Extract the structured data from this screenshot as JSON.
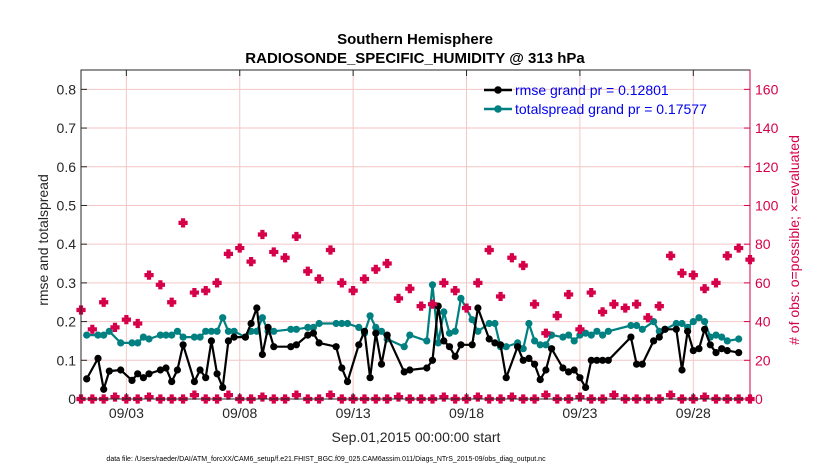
{
  "chart_data": {
    "type": "line",
    "title": "Southern Hemisphere",
    "subtitle": "RADIOSONDE_SPECIFIC_HUMIDITY @ 313 hPa",
    "xlabel": "Sep.01,2015 00:00:00 start",
    "ylabel_left": "rmse and totalspread",
    "ylabel_right": "# of obs: o=possible; ×=evaluated",
    "footnote": "data file: /Users/raeder/DAI/ATM_forcXX/CAM6_setup/f.e21.FHIST_BGC.f09_025.CAM6assim.011/Diags_NTrS_2015-09/obs_diag_output.nc",
    "xlim": [
      1,
      30.5
    ],
    "ylim_left": [
      0,
      0.85
    ],
    "ylim_right": [
      0,
      170
    ],
    "x_ticks": [
      3,
      8,
      13,
      18,
      23,
      28
    ],
    "x_tick_labels": [
      "09/03",
      "09/08",
      "09/13",
      "09/18",
      "09/23",
      "09/28"
    ],
    "y_left_ticks": [
      0,
      0.1,
      0.2,
      0.3,
      0.4,
      0.5,
      0.6,
      0.7,
      0.8
    ],
    "y_left_tick_labels": [
      "0",
      "0.1",
      "0.2",
      "0.3",
      "0.4",
      "0.5",
      "0.6",
      "0.7",
      "0.8"
    ],
    "y_right_ticks": [
      0,
      20,
      40,
      60,
      80,
      100,
      120,
      140,
      160
    ],
    "y_right_tick_labels": [
      "0",
      "20",
      "40",
      "60",
      "80",
      "100",
      "120",
      "140",
      "160"
    ],
    "grid": true,
    "legend_position": "top-right",
    "colors": {
      "rmse": "#000000",
      "totalspread": "#008080",
      "obs": "#d6004a",
      "grid": "#f4c6c6",
      "axis": "#262626",
      "legend_text": "#0000ee"
    },
    "series": [
      {
        "name": "rmse grand pr = 0.12801",
        "x": [
          1.25,
          1.75,
          2.0,
          2.25,
          2.75,
          3.25,
          3.5,
          3.75,
          4.0,
          4.5,
          4.75,
          5.0,
          5.25,
          5.5,
          6.0,
          6.25,
          6.5,
          6.75,
          7.0,
          7.25,
          7.5,
          7.75,
          8.25,
          8.5,
          8.75,
          9.0,
          9.25,
          9.5,
          10.25,
          10.5,
          11.0,
          11.25,
          11.5,
          12.25,
          12.5,
          12.75,
          13.25,
          13.5,
          13.75,
          14.0,
          14.25,
          14.5,
          15.25,
          15.5,
          16.25,
          16.5,
          16.75,
          17.0,
          17.25,
          17.5,
          17.75,
          18.25,
          18.5,
          19.0,
          19.25,
          19.5,
          19.75,
          20.25,
          20.5,
          20.75,
          21.0,
          21.25,
          21.5,
          21.75,
          22.25,
          22.5,
          22.75,
          23.0,
          23.25,
          23.5,
          23.75,
          24.0,
          24.25,
          25.25,
          25.5,
          25.75,
          26.25,
          26.5,
          26.75,
          27.25,
          27.5,
          27.75,
          28.0,
          28.25,
          28.5,
          28.75,
          29.0,
          29.25,
          29.5,
          30.0
        ],
        "values": [
          0.052,
          0.105,
          0.025,
          0.072,
          0.075,
          0.048,
          0.065,
          0.055,
          0.065,
          0.075,
          0.08,
          0.045,
          0.075,
          0.14,
          0.045,
          0.075,
          0.055,
          0.15,
          0.065,
          0.03,
          0.15,
          0.16,
          0.16,
          0.195,
          0.235,
          0.115,
          0.185,
          0.135,
          0.135,
          0.14,
          0.165,
          0.17,
          0.145,
          0.135,
          0.08,
          0.045,
          0.14,
          0.175,
          0.055,
          0.17,
          0.09,
          0.165,
          0.07,
          0.075,
          0.08,
          0.1,
          0.24,
          0.15,
          0.135,
          0.11,
          0.14,
          0.14,
          0.235,
          0.155,
          0.145,
          0.14,
          0.055,
          0.135,
          0.1,
          0.105,
          0.09,
          0.05,
          0.075,
          0.13,
          0.08,
          0.07,
          0.075,
          0.055,
          0.03,
          0.1,
          0.1,
          0.1,
          0.1,
          0.16,
          0.09,
          0.09,
          0.15,
          0.16,
          0.18,
          0.18,
          0.075,
          0.175,
          0.125,
          0.13,
          0.18,
          0.14,
          0.12,
          0.13,
          0.125,
          0.12
        ]
      },
      {
        "name": "totalspread grand pr = 0.17577",
        "x": [
          1.25,
          1.75,
          2.0,
          2.25,
          2.75,
          3.25,
          3.5,
          3.75,
          4.0,
          4.5,
          4.75,
          5.0,
          5.25,
          5.5,
          6.0,
          6.25,
          6.5,
          6.75,
          7.0,
          7.25,
          7.5,
          7.75,
          8.25,
          8.5,
          8.75,
          9.0,
          9.25,
          9.5,
          10.25,
          10.5,
          11.0,
          11.25,
          11.5,
          12.25,
          12.5,
          12.75,
          13.25,
          13.5,
          13.75,
          14.0,
          14.25,
          14.5,
          15.25,
          15.5,
          16.25,
          16.5,
          16.75,
          17.0,
          17.25,
          17.5,
          17.75,
          18.25,
          18.5,
          19.0,
          19.25,
          19.5,
          19.75,
          20.25,
          20.5,
          20.75,
          21.0,
          21.25,
          21.5,
          21.75,
          22.25,
          22.5,
          22.75,
          23.0,
          23.25,
          23.5,
          23.75,
          24.0,
          24.25,
          25.25,
          25.5,
          25.75,
          26.25,
          26.5,
          26.75,
          27.25,
          27.5,
          27.75,
          28.0,
          28.25,
          28.5,
          28.75,
          29.0,
          29.25,
          29.5,
          30.0
        ],
        "values": [
          0.165,
          0.165,
          0.165,
          0.175,
          0.145,
          0.145,
          0.145,
          0.16,
          0.155,
          0.165,
          0.165,
          0.165,
          0.175,
          0.16,
          0.16,
          0.16,
          0.175,
          0.175,
          0.175,
          0.21,
          0.175,
          0.175,
          0.16,
          0.175,
          0.175,
          0.21,
          0.175,
          0.175,
          0.18,
          0.18,
          0.185,
          0.185,
          0.195,
          0.195,
          0.195,
          0.195,
          0.185,
          0.17,
          0.215,
          0.185,
          0.175,
          0.155,
          0.135,
          0.165,
          0.15,
          0.295,
          0.145,
          0.225,
          0.17,
          0.175,
          0.26,
          0.205,
          0.175,
          0.195,
          0.195,
          0.135,
          0.135,
          0.145,
          0.13,
          0.195,
          0.15,
          0.14,
          0.14,
          0.165,
          0.16,
          0.165,
          0.15,
          0.165,
          0.17,
          0.165,
          0.175,
          0.165,
          0.175,
          0.19,
          0.19,
          0.18,
          0.2,
          0.175,
          0.18,
          0.195,
          0.195,
          0.185,
          0.2,
          0.21,
          0.2,
          0.16,
          0.165,
          0.16,
          0.15,
          0.155
        ]
      }
    ],
    "obs_possible": {
      "x": [
        1.0,
        1.5,
        2.0,
        2.5,
        3.0,
        3.5,
        4.0,
        4.5,
        5.0,
        5.5,
        6.0,
        6.5,
        7.0,
        7.5,
        8.0,
        8.5,
        9.0,
        9.5,
        10.0,
        10.5,
        11.0,
        11.5,
        12.0,
        12.5,
        13.0,
        13.5,
        14.0,
        14.5,
        15.0,
        15.5,
        16.0,
        16.5,
        17.0,
        17.5,
        18.0,
        18.5,
        19.0,
        19.5,
        20.0,
        20.5,
        21.0,
        21.5,
        22.0,
        22.5,
        23.0,
        23.5,
        24.0,
        24.5,
        25.0,
        25.5,
        26.0,
        26.5,
        27.0,
        27.5,
        28.0,
        28.5,
        29.0,
        29.5,
        30.0,
        30.5
      ],
      "values": [
        0,
        0,
        0,
        1,
        0,
        0,
        1,
        0,
        0,
        0,
        2,
        0,
        0,
        2,
        0,
        0,
        1,
        0,
        0,
        2,
        0,
        0,
        2,
        0,
        0,
        0,
        0,
        0,
        1,
        0,
        0,
        0,
        1,
        0,
        0,
        1,
        0,
        0,
        1,
        0,
        0,
        2,
        0,
        0,
        1,
        0,
        0,
        2,
        0,
        0,
        0,
        0,
        2,
        0,
        0,
        1,
        0,
        0,
        0,
        0
      ]
    },
    "obs_evaluated": {
      "x": [
        1.0,
        1.5,
        2.0,
        2.5,
        3.0,
        3.5,
        4.0,
        4.5,
        5.0,
        5.5,
        6.0,
        6.5,
        7.0,
        7.5,
        8.0,
        8.5,
        9.0,
        9.5,
        10.0,
        10.5,
        11.0,
        11.5,
        12.0,
        12.5,
        13.0,
        13.5,
        14.0,
        14.5,
        15.0,
        15.5,
        16.0,
        16.5,
        17.0,
        17.5,
        18.0,
        18.5,
        19.0,
        19.5,
        20.0,
        20.5,
        21.0,
        21.5,
        22.0,
        22.5,
        23.0,
        23.5,
        24.0,
        24.5,
        25.0,
        25.5,
        26.0,
        26.5,
        27.0,
        27.5,
        28.0,
        28.5,
        29.0,
        29.5,
        30.0,
        30.5
      ],
      "values": [
        46,
        36,
        50,
        37,
        41,
        39,
        64,
        59,
        50,
        91,
        55,
        56,
        60,
        75,
        78,
        71,
        85,
        76,
        73,
        84,
        66,
        62,
        77,
        60,
        56,
        62,
        67,
        70,
        52,
        57,
        48,
        49,
        60,
        56,
        47,
        60,
        77,
        53,
        73,
        69,
        49,
        34,
        43,
        54,
        36,
        55,
        45,
        49,
        47,
        49,
        42,
        48,
        74,
        65,
        64,
        57,
        60,
        74,
        78,
        72
      ]
    }
  }
}
